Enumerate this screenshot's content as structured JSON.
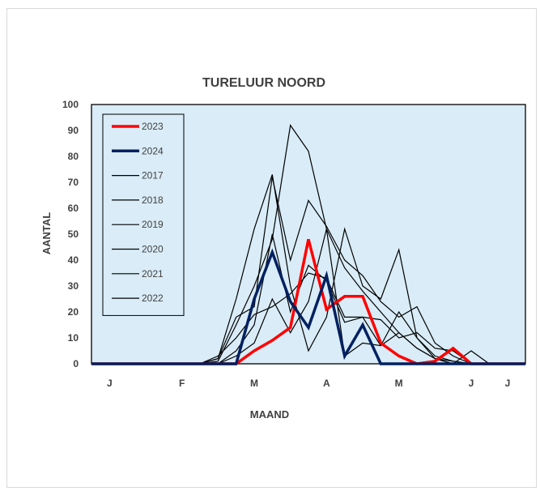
{
  "chart_data": {
    "type": "line",
    "title": "TURELUUR NOORD",
    "xlabel": "MAAND",
    "ylabel": "AANTAL",
    "ylim": [
      0,
      100
    ],
    "yticks": [
      0,
      10,
      20,
      30,
      40,
      50,
      60,
      70,
      80,
      90,
      100
    ],
    "xlim": [
      0,
      24
    ],
    "xticks": [
      {
        "label": "J",
        "x": 1
      },
      {
        "label": "F",
        "x": 5
      },
      {
        "label": "M",
        "x": 9
      },
      {
        "label": "A",
        "x": 13
      },
      {
        "label": "M",
        "x": 17
      },
      {
        "label": "J",
        "x": 21
      },
      {
        "label": "J",
        "x": 25
      }
    ],
    "plot_background": "#d9ecf7",
    "legend_position": "top-left",
    "series": [
      {
        "name": "2023",
        "color": "#ff0000",
        "width": 3.5,
        "x": [
          0,
          1,
          2,
          3,
          4,
          5,
          6,
          7,
          8,
          9,
          10,
          11,
          12,
          13,
          14,
          15,
          16,
          17,
          18,
          19,
          20,
          21,
          22,
          23,
          24
        ],
        "y": [
          0,
          0,
          0,
          0,
          0,
          0,
          0,
          0,
          0,
          5,
          9,
          14,
          48,
          21,
          26,
          26,
          8,
          3,
          0,
          1,
          6,
          0,
          0,
          0,
          0
        ]
      },
      {
        "name": "2024",
        "color": "#002060",
        "width": 3.5,
        "x": [
          0,
          1,
          2,
          3,
          4,
          5,
          6,
          7,
          8,
          9,
          10,
          11,
          12,
          13,
          14,
          15,
          16,
          17,
          18,
          19,
          20,
          21,
          22,
          23,
          24
        ],
        "y": [
          0,
          0,
          0,
          0,
          0,
          0,
          0,
          0,
          0,
          25,
          43,
          24,
          14,
          34,
          3,
          15,
          0,
          0,
          0,
          0,
          0,
          0,
          0,
          0,
          0
        ]
      },
      {
        "name": "2017",
        "color": "#000000",
        "width": 1.2,
        "x": [
          0,
          1,
          2,
          3,
          4,
          5,
          6,
          7,
          8,
          9,
          10,
          11,
          12,
          13,
          14,
          15,
          16,
          17,
          18,
          19,
          20,
          21,
          22,
          23,
          24
        ],
        "y": [
          0,
          0,
          0,
          0,
          0,
          0,
          0,
          2,
          25,
          52,
          73,
          30,
          5,
          18,
          52,
          30,
          25,
          44,
          10,
          3,
          1,
          0,
          0,
          0,
          0
        ]
      },
      {
        "name": "2018",
        "color": "#000000",
        "width": 1.2,
        "x": [
          0,
          1,
          2,
          3,
          4,
          5,
          6,
          7,
          8,
          9,
          10,
          11,
          12,
          13,
          14,
          15,
          16,
          17,
          18,
          19,
          20,
          21,
          22,
          23,
          24
        ],
        "y": [
          0,
          0,
          0,
          0,
          0,
          0,
          0,
          1,
          15,
          30,
          48,
          92,
          82,
          52,
          37,
          28,
          20,
          12,
          6,
          2,
          1,
          0,
          0,
          0,
          0
        ]
      },
      {
        "name": "2019",
        "color": "#000000",
        "width": 1.2,
        "x": [
          0,
          1,
          2,
          3,
          4,
          5,
          6,
          7,
          8,
          9,
          10,
          11,
          12,
          13,
          14,
          15,
          16,
          17,
          18,
          19,
          20,
          21,
          22,
          23,
          24
        ],
        "y": [
          0,
          0,
          0,
          0,
          0,
          0,
          0,
          2,
          18,
          22,
          72,
          40,
          63,
          53,
          40,
          34,
          24,
          18,
          22,
          8,
          3,
          0,
          0,
          0,
          0
        ]
      },
      {
        "name": "2020",
        "color": "#000000",
        "width": 1.2,
        "x": [
          0,
          1,
          2,
          3,
          4,
          5,
          6,
          7,
          8,
          9,
          10,
          11,
          12,
          13,
          14,
          15,
          16,
          17,
          18,
          19,
          20,
          21,
          22,
          23,
          24
        ],
        "y": [
          0,
          0,
          0,
          0,
          0,
          0,
          0,
          3,
          10,
          19,
          22,
          27,
          35,
          33,
          18,
          18,
          17,
          10,
          12,
          6,
          5,
          0,
          0,
          0,
          0
        ]
      },
      {
        "name": "2021",
        "color": "#000000",
        "width": 1.2,
        "x": [
          0,
          1,
          2,
          3,
          4,
          5,
          6,
          7,
          8,
          9,
          10,
          11,
          12,
          13,
          14,
          15,
          16,
          17,
          18,
          19,
          20,
          21,
          22,
          23,
          24
        ],
        "y": [
          0,
          0,
          0,
          0,
          0,
          0,
          0,
          0,
          5,
          15,
          50,
          20,
          38,
          32,
          16,
          18,
          7,
          12,
          6,
          2,
          0,
          0,
          0,
          0,
          0
        ]
      },
      {
        "name": "2022",
        "color": "#000000",
        "width": 1.2,
        "x": [
          0,
          1,
          2,
          3,
          4,
          5,
          6,
          7,
          8,
          9,
          10,
          11,
          12,
          13,
          14,
          15,
          16,
          17,
          18,
          19,
          20,
          21,
          22,
          23,
          24
        ],
        "y": [
          0,
          0,
          0,
          0,
          0,
          0,
          0,
          0,
          3,
          8,
          25,
          12,
          24,
          52,
          3,
          8,
          7,
          20,
          10,
          2,
          0,
          5,
          0,
          0,
          0
        ]
      }
    ]
  }
}
